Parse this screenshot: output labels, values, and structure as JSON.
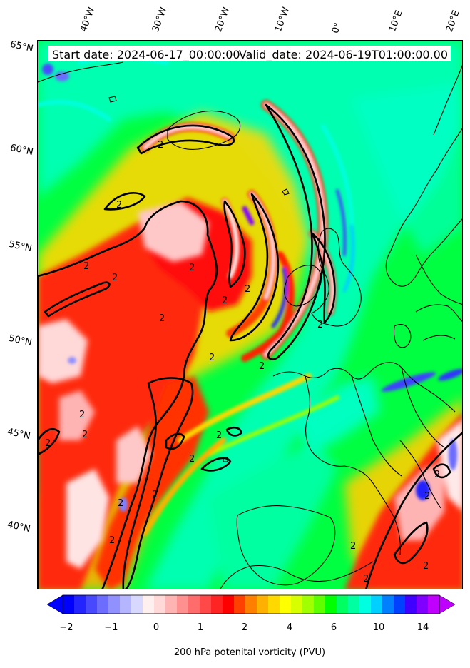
{
  "map": {
    "start_label": "Start date: 2024-06-17_00:00:00",
    "valid_label": "Valid_date: 2024-06-19T01:00:00.00",
    "lon_labels": [
      "40°W",
      "30°W",
      "20°W",
      "10°W",
      "0°",
      "10°E",
      "20°E"
    ],
    "lat_labels": [
      "65°N",
      "60°N",
      "55°N",
      "50°N",
      "45°N",
      "40°N"
    ],
    "contour_label": "2"
  },
  "colorbar": {
    "ticks": [
      "−2",
      "−1",
      "0",
      "1",
      "2",
      "4",
      "6",
      "10",
      "14"
    ],
    "label": "200 hPa potenital vorticity (PVU)",
    "colors": [
      "#0000ff",
      "#2424ff",
      "#4848ff",
      "#6c6cff",
      "#9090ff",
      "#b4b4ff",
      "#d8d8ff",
      "#fff0f0",
      "#ffd8d8",
      "#ffb4b4",
      "#ff9090",
      "#ff6c6c",
      "#ff4848",
      "#ff2424",
      "#ff0000",
      "#ff4000",
      "#ff8000",
      "#ffb000",
      "#ffd800",
      "#ffff00",
      "#d8ff00",
      "#a0ff00",
      "#60ff00",
      "#00ff00",
      "#00ff60",
      "#00ffa0",
      "#00ffe0",
      "#00d0ff",
      "#0080ff",
      "#0040ff",
      "#4000ff",
      "#8000ff",
      "#c000ff"
    ]
  }
}
